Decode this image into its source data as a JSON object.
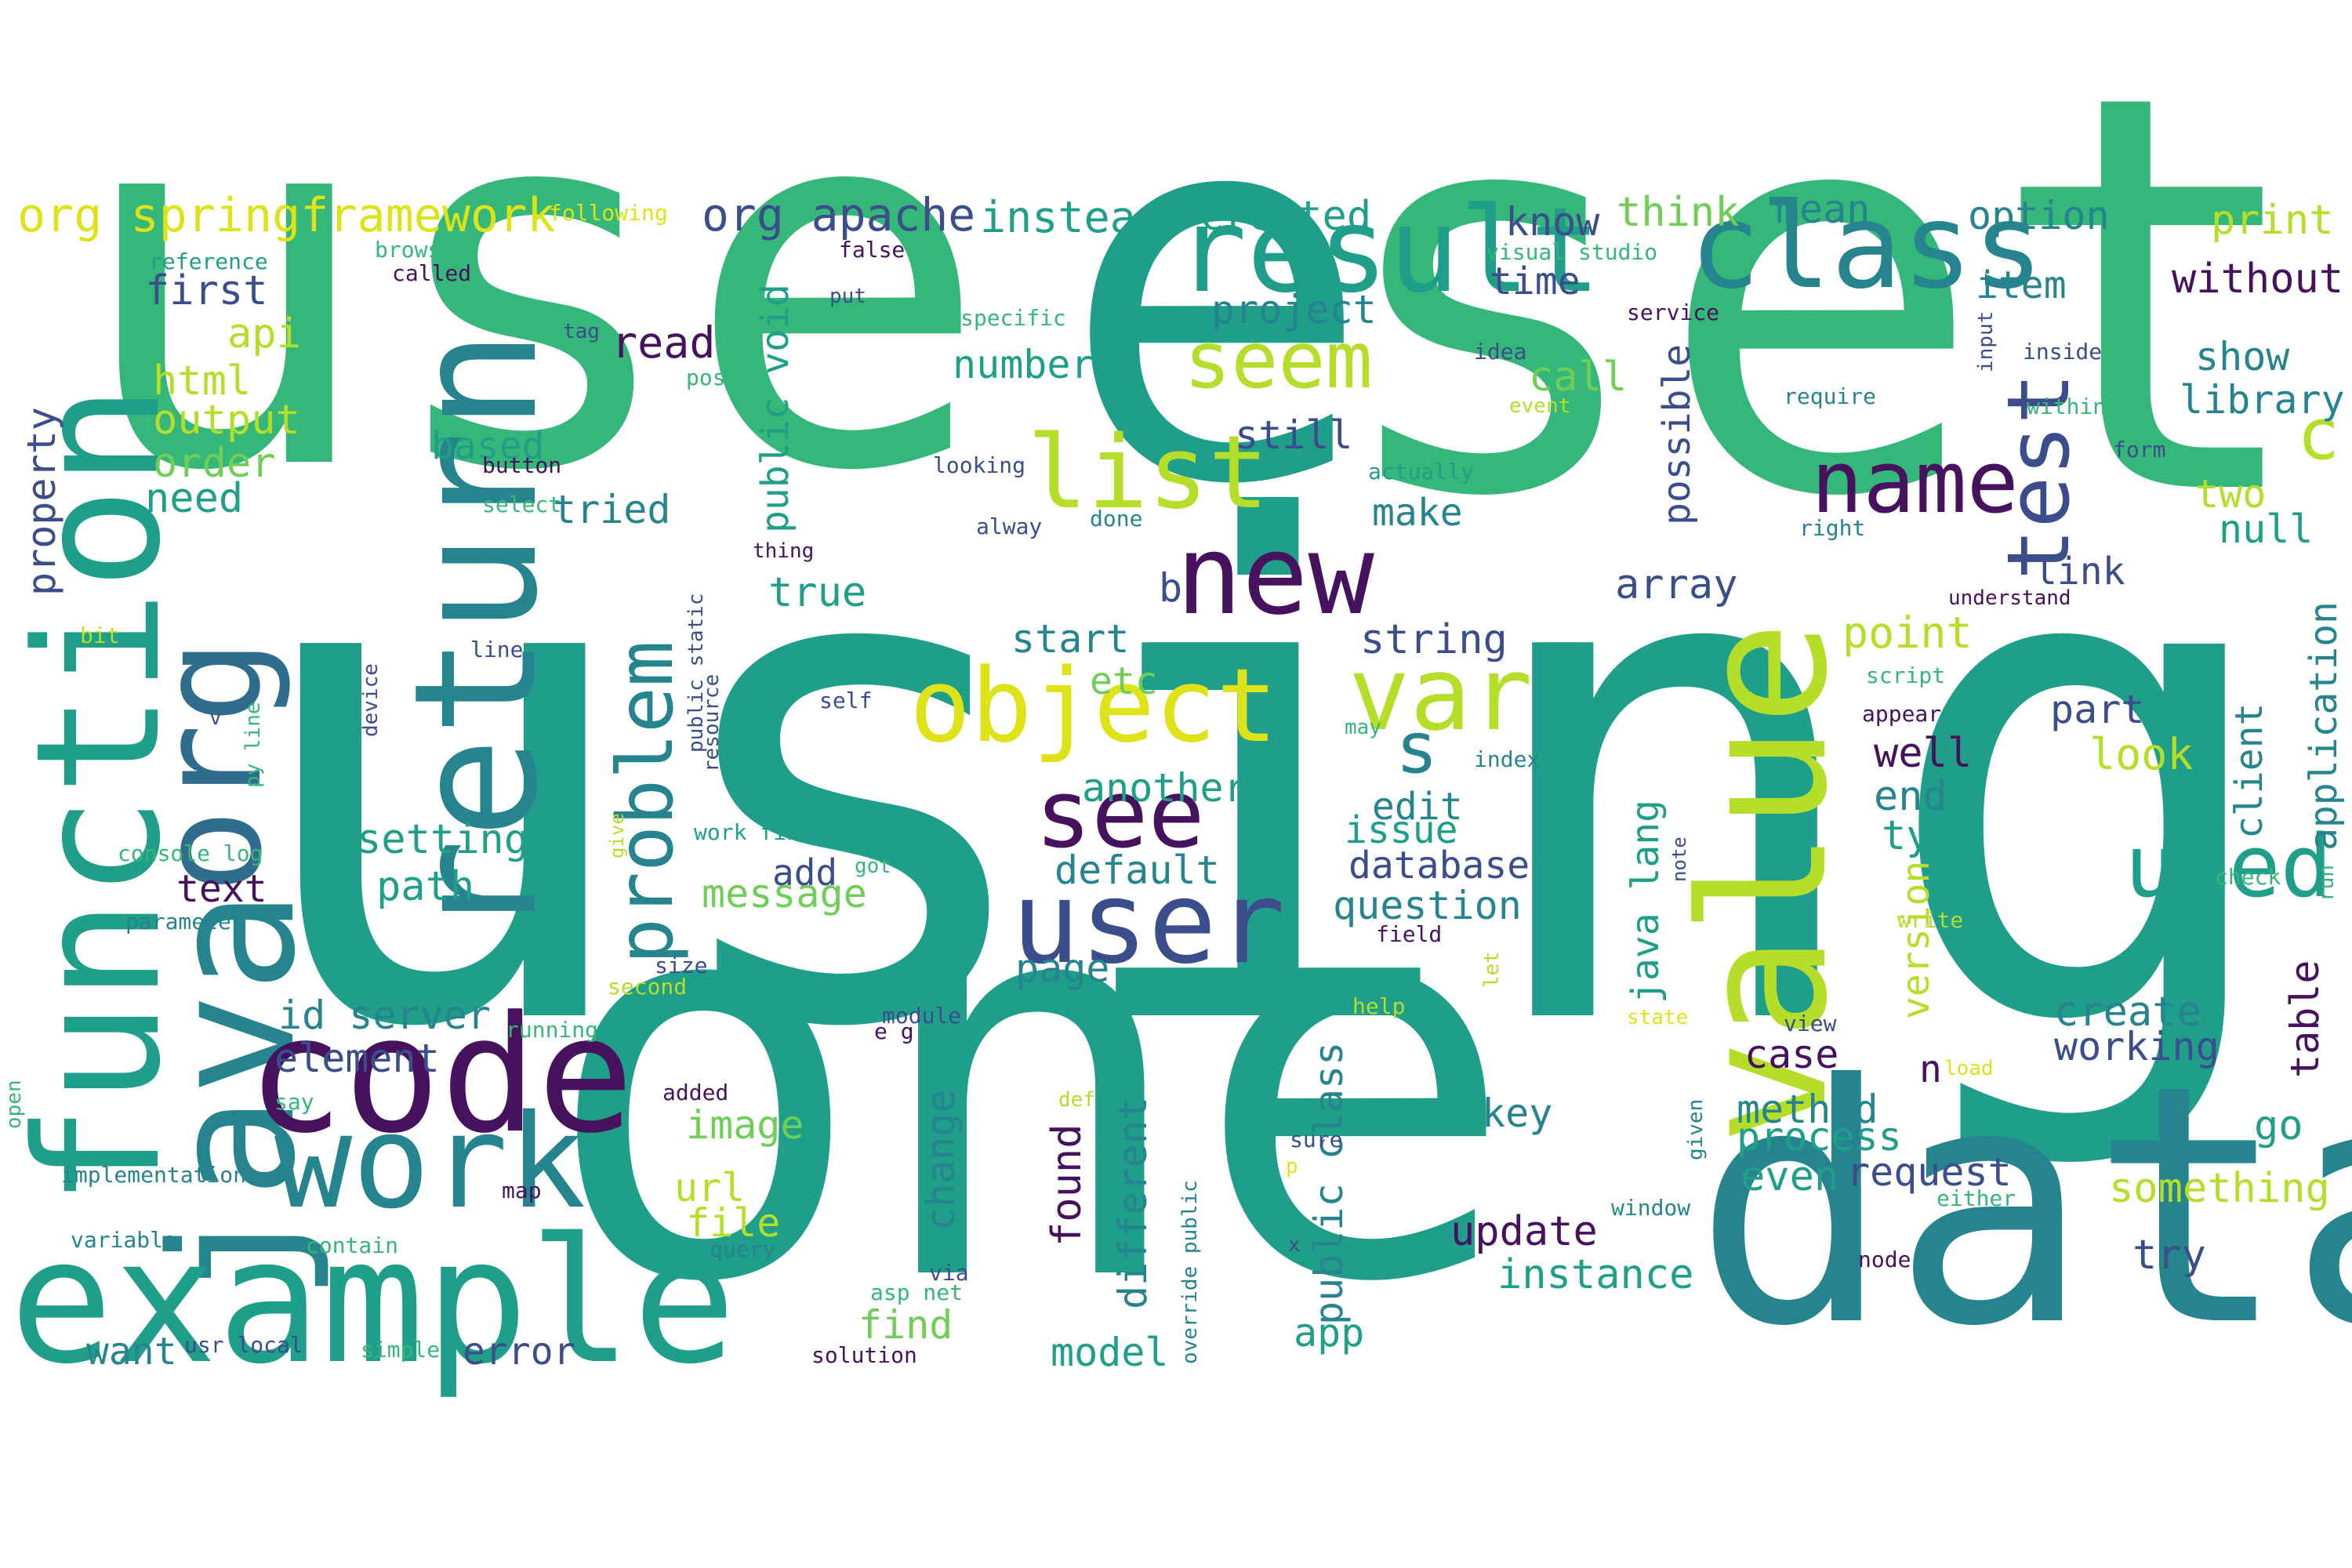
{
  "palette": {
    "purple": "#46125e",
    "navy": "#3b4e8b",
    "blue": "#2f6c8e",
    "teal": "#26848e",
    "teal2": "#1f9e89",
    "green": "#35b779",
    "lime": "#6ece58",
    "yellowgreen": "#b5de2b",
    "yellow": "#dde318"
  },
  "words": [
    {
      "text": "using",
      "color": "teal2"
    },
    {
      "text": "use",
      "color": "green"
    },
    {
      "text": "one",
      "color": "teal2"
    },
    {
      "text": "set",
      "color": "green"
    },
    {
      "text": "e",
      "color": "teal2"
    },
    {
      "text": "data",
      "color": "teal"
    },
    {
      "text": "function",
      "color": "teal2"
    },
    {
      "text": "java",
      "color": "teal"
    },
    {
      "text": "org",
      "color": "blue"
    },
    {
      "text": "return",
      "color": "teal"
    },
    {
      "text": "example",
      "color": "teal2"
    },
    {
      "text": "code",
      "color": "purple"
    },
    {
      "text": "work",
      "color": "teal"
    },
    {
      "text": "value",
      "color": "yellowgreen"
    },
    {
      "text": "result",
      "color": "teal2"
    },
    {
      "text": "class",
      "color": "teal"
    },
    {
      "text": "new",
      "color": "purple"
    },
    {
      "text": "user",
      "color": "navy"
    },
    {
      "text": "list",
      "color": "yellowgreen"
    },
    {
      "text": "object",
      "color": "yellow"
    },
    {
      "text": "seem",
      "color": "yellowgreen"
    },
    {
      "text": "name",
      "color": "purple"
    },
    {
      "text": "test",
      "color": "navy"
    },
    {
      "text": "see",
      "color": "purple"
    },
    {
      "text": "var",
      "color": "yellowgreen"
    },
    {
      "text": "used",
      "color": "teal2"
    },
    {
      "text": "problem",
      "color": "teal"
    },
    {
      "text": "s",
      "color": "teal"
    },
    {
      "text": "c",
      "color": "yellowgreen"
    },
    {
      "text": "org springframework",
      "color": "yellow"
    },
    {
      "text": "org apache",
      "color": "navy"
    },
    {
      "text": "instead",
      "color": "teal2"
    },
    {
      "text": "created",
      "color": "teal2"
    },
    {
      "text": "know",
      "color": "navy"
    },
    {
      "text": "think",
      "color": "lime"
    },
    {
      "text": "mean",
      "color": "teal"
    },
    {
      "text": "option",
      "color": "teal"
    },
    {
      "text": "print",
      "color": "yellowgreen"
    },
    {
      "text": "without",
      "color": "purple"
    },
    {
      "text": "first",
      "color": "navy"
    },
    {
      "text": "api",
      "color": "yellowgreen"
    },
    {
      "text": "html",
      "color": "yellowgreen"
    },
    {
      "text": "output",
      "color": "yellowgreen"
    },
    {
      "text": "order",
      "color": "lime"
    },
    {
      "text": "need",
      "color": "teal2"
    },
    {
      "text": "property",
      "color": "navy"
    },
    {
      "text": "number",
      "color": "teal2"
    },
    {
      "text": "read",
      "color": "purple"
    },
    {
      "text": "project",
      "color": "teal"
    },
    {
      "text": "time",
      "color": "navy"
    },
    {
      "text": "item",
      "color": "teal"
    },
    {
      "text": "show",
      "color": "teal"
    },
    {
      "text": "library",
      "color": "teal"
    },
    {
      "text": "call",
      "color": "lime"
    },
    {
      "text": "still",
      "color": "navy"
    },
    {
      "text": "possible",
      "color": "navy"
    },
    {
      "text": "make",
      "color": "teal"
    },
    {
      "text": "two",
      "color": "yellowgreen"
    },
    {
      "text": "null",
      "color": "teal2"
    },
    {
      "text": "public void",
      "color": "teal2"
    },
    {
      "text": "based",
      "color": "teal2"
    },
    {
      "text": "tried",
      "color": "teal"
    },
    {
      "text": "true",
      "color": "teal2"
    },
    {
      "text": "array",
      "color": "navy"
    },
    {
      "text": "link",
      "color": "navy"
    },
    {
      "text": "b",
      "color": "navy"
    },
    {
      "text": "start",
      "color": "teal"
    },
    {
      "text": "string",
      "color": "navy"
    },
    {
      "text": "point",
      "color": "yellowgreen"
    },
    {
      "text": "etc",
      "color": "lime"
    },
    {
      "text": "part",
      "color": "navy"
    },
    {
      "text": "look",
      "color": "yellowgreen"
    },
    {
      "text": "well",
      "color": "purple"
    },
    {
      "text": "end",
      "color": "teal"
    },
    {
      "text": "client",
      "color": "teal"
    },
    {
      "text": "application",
      "color": "teal"
    },
    {
      "text": "setting",
      "color": "teal2"
    },
    {
      "text": "path",
      "color": "teal2"
    },
    {
      "text": "text",
      "color": "purple"
    },
    {
      "text": "another",
      "color": "teal2"
    },
    {
      "text": "edit",
      "color": "teal"
    },
    {
      "text": "issue",
      "color": "teal2"
    },
    {
      "text": "type",
      "color": "teal2"
    },
    {
      "text": "default",
      "color": "teal"
    },
    {
      "text": "database",
      "color": "navy"
    },
    {
      "text": "question",
      "color": "teal"
    },
    {
      "text": "add",
      "color": "navy"
    },
    {
      "text": "message",
      "color": "lime"
    },
    {
      "text": "java lang",
      "color": "teal2"
    },
    {
      "text": "version",
      "color": "yellowgreen"
    },
    {
      "text": "table",
      "color": "purple"
    },
    {
      "text": "id server",
      "color": "teal"
    },
    {
      "text": "element",
      "color": "navy"
    },
    {
      "text": "page",
      "color": "teal"
    },
    {
      "text": "create",
      "color": "teal"
    },
    {
      "text": "working",
      "color": "navy"
    },
    {
      "text": "image",
      "color": "lime"
    },
    {
      "text": "change",
      "color": "teal"
    },
    {
      "text": "key",
      "color": "teal"
    },
    {
      "text": "case",
      "color": "purple"
    },
    {
      "text": "n",
      "color": "purple"
    },
    {
      "text": "method",
      "color": "teal"
    },
    {
      "text": "process",
      "color": "teal2"
    },
    {
      "text": "go",
      "color": "teal2"
    },
    {
      "text": "url",
      "color": "yellowgreen"
    },
    {
      "text": "file",
      "color": "yellowgreen"
    },
    {
      "text": "found",
      "color": "purple"
    },
    {
      "text": "different",
      "color": "teal"
    },
    {
      "text": "public class",
      "color": "teal"
    },
    {
      "text": "request",
      "color": "navy"
    },
    {
      "text": "even",
      "color": "teal2"
    },
    {
      "text": "something",
      "color": "yellowgreen"
    },
    {
      "text": "update",
      "color": "purple"
    },
    {
      "text": "instance",
      "color": "teal2"
    },
    {
      "text": "try",
      "color": "navy"
    },
    {
      "text": "find",
      "color": "lime"
    },
    {
      "text": "want",
      "color": "teal"
    },
    {
      "text": "error",
      "color": "navy"
    },
    {
      "text": "model",
      "color": "teal2"
    },
    {
      "text": "app",
      "color": "teal2"
    },
    {
      "text": "following",
      "color": "yellow"
    },
    {
      "text": "reference",
      "color": "teal2"
    },
    {
      "text": "browser",
      "color": "green"
    },
    {
      "text": "called",
      "color": "purple"
    },
    {
      "text": "false",
      "color": "purple"
    },
    {
      "text": "put",
      "color": "navy"
    },
    {
      "text": "visual studio",
      "color": "green"
    },
    {
      "text": "service",
      "color": "purple"
    },
    {
      "text": "specific",
      "color": "green"
    },
    {
      "text": "tag",
      "color": "navy"
    },
    {
      "text": "post",
      "color": "green"
    },
    {
      "text": "idea",
      "color": "navy"
    },
    {
      "text": "event",
      "color": "yellowgreen"
    },
    {
      "text": "require",
      "color": "teal"
    },
    {
      "text": "input",
      "color": "navy"
    },
    {
      "text": "inside",
      "color": "navy"
    },
    {
      "text": "within",
      "color": "green"
    },
    {
      "text": "form",
      "color": "navy"
    },
    {
      "text": "looking",
      "color": "navy"
    },
    {
      "text": "actually",
      "color": "teal2"
    },
    {
      "text": "button",
      "color": "purple"
    },
    {
      "text": "select",
      "color": "green"
    },
    {
      "text": "alway",
      "color": "navy"
    },
    {
      "text": "done",
      "color": "teal"
    },
    {
      "text": "right",
      "color": "teal"
    },
    {
      "text": "thing",
      "color": "purple"
    },
    {
      "text": "understand",
      "color": "purple"
    },
    {
      "text": "bit",
      "color": "yellowgreen"
    },
    {
      "text": "line",
      "color": "navy"
    },
    {
      "text": "script",
      "color": "green"
    },
    {
      "text": "device",
      "color": "navy"
    },
    {
      "text": "public static",
      "color": "navy"
    },
    {
      "text": "resource",
      "color": "navy"
    },
    {
      "text": "self",
      "color": "navy"
    },
    {
      "text": "appear",
      "color": "purple"
    },
    {
      "text": "v",
      "color": "navy"
    },
    {
      "text": "py line",
      "color": "green"
    },
    {
      "text": "may",
      "color": "green"
    },
    {
      "text": "index",
      "color": "teal"
    },
    {
      "text": "work fine",
      "color": "teal2"
    },
    {
      "text": "console log",
      "color": "green"
    },
    {
      "text": "give",
      "color": "yellowgreen"
    },
    {
      "text": "got",
      "color": "green"
    },
    {
      "text": "note",
      "color": "navy"
    },
    {
      "text": "check",
      "color": "green"
    },
    {
      "text": "run",
      "color": "green"
    },
    {
      "text": "parameter",
      "color": "teal"
    },
    {
      "text": "write",
      "color": "yellowgreen"
    },
    {
      "text": "field",
      "color": "purple"
    },
    {
      "text": "size",
      "color": "navy"
    },
    {
      "text": "second",
      "color": "yellowgreen"
    },
    {
      "text": "let",
      "color": "yellowgreen"
    },
    {
      "text": "help",
      "color": "yellowgreen"
    },
    {
      "text": "running",
      "color": "green"
    },
    {
      "text": "module",
      "color": "navy"
    },
    {
      "text": "e g",
      "color": "purple"
    },
    {
      "text": "state",
      "color": "yellow"
    },
    {
      "text": "view",
      "color": "navy"
    },
    {
      "text": "load",
      "color": "yellow"
    },
    {
      "text": "open",
      "color": "green"
    },
    {
      "text": "added",
      "color": "purple"
    },
    {
      "text": "def",
      "color": "yellowgreen"
    },
    {
      "text": "say",
      "color": "green"
    },
    {
      "text": "given",
      "color": "teal"
    },
    {
      "text": "implementation",
      "color": "teal"
    },
    {
      "text": "sure",
      "color": "navy"
    },
    {
      "text": "override public",
      "color": "teal"
    },
    {
      "text": "p",
      "color": "yellow"
    },
    {
      "text": "map",
      "color": "purple"
    },
    {
      "text": "window",
      "color": "teal"
    },
    {
      "text": "either",
      "color": "green"
    },
    {
      "text": "variable",
      "color": "teal"
    },
    {
      "text": "contain",
      "color": "green"
    },
    {
      "text": "query",
      "color": "teal"
    },
    {
      "text": "x",
      "color": "navy"
    },
    {
      "text": "via",
      "color": "navy"
    },
    {
      "text": "node",
      "color": "purple"
    },
    {
      "text": "asp net",
      "color": "green"
    },
    {
      "text": "usr local",
      "color": "navy"
    },
    {
      "text": "simple",
      "color": "green"
    },
    {
      "text": "solution",
      "color": "purple"
    }
  ]
}
